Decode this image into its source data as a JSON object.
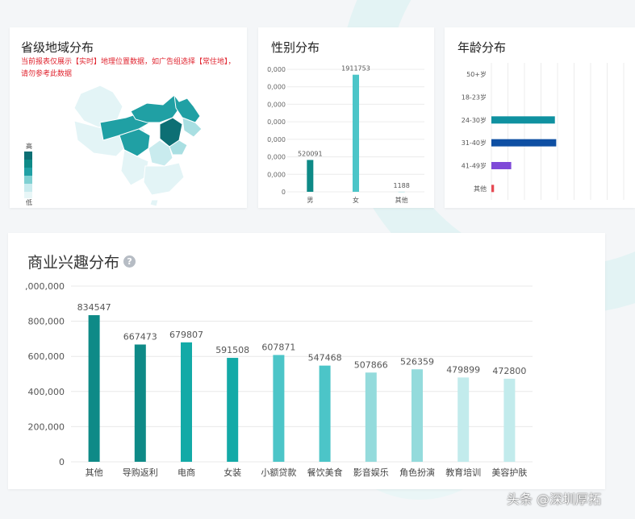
{
  "colors": {
    "teal_dark": "#0e8a87",
    "teal_mid": "#13aaa7",
    "teal_light": "#4cc5c8",
    "teal_pale": "#94dbdc",
    "teal_paler": "#c2ebec",
    "blue_dark": "#0e4fa3",
    "purple": "#7f49d8",
    "red": "#e64a53",
    "age_teal": "#0f91a0"
  },
  "map_card": {
    "title": "省级地域分布",
    "notice": "当前报表仅展示【实时】地理位置数据，如广告组选择【常住地】，请勿参考此数据",
    "legend_high": "高",
    "legend_low": "低"
  },
  "chart_data": [
    {
      "type": "bar",
      "title": "性别分布",
      "categories": [
        "男",
        "女",
        "其他"
      ],
      "values": [
        520091,
        1911753,
        1188
      ],
      "ylim": [
        0,
        2000000
      ],
      "yticks": [
        "0",
        "0,000",
        "0,000",
        "0,000",
        "0,000",
        "0,000",
        "0,000",
        "0,000"
      ],
      "grid": true,
      "colors": [
        "#0e8a87",
        "#4cc5c8",
        "#94dbdc"
      ]
    },
    {
      "type": "bar",
      "orientation": "horizontal",
      "title": "年龄分布",
      "categories": [
        "50+岁",
        "18-23岁",
        "24-30岁",
        "31-40岁",
        "41-49岁",
        "其他"
      ],
      "values": [
        0,
        0,
        0.48,
        0.49,
        0.15,
        0.02
      ],
      "grid": true,
      "colors": [
        "#0f91a0",
        "#0f91a0",
        "#0f91a0",
        "#0e4fa3",
        "#7f49d8",
        "#e64a53"
      ]
    },
    {
      "type": "bar",
      "title": "商业兴趣分布",
      "categories": [
        "其他",
        "导购返利",
        "电商",
        "女装",
        "小额贷款",
        "餐饮美食",
        "影音娱乐",
        "角色扮演",
        "教育培训",
        "美容护肤"
      ],
      "values": [
        834547,
        667473,
        679807,
        591508,
        607871,
        547468,
        507866,
        526359,
        479899,
        472800
      ],
      "ylim": [
        0,
        1000000
      ],
      "yticks": [
        "0",
        "200,000",
        "400,000",
        "600,000",
        "800,000",
        ",000,000"
      ],
      "grid": true,
      "colors": [
        "#0e8a87",
        "#0e8a87",
        "#13aaa7",
        "#13aaa7",
        "#4cc5c8",
        "#4cc5c8",
        "#94dbdc",
        "#94dbdc",
        "#c2ebec",
        "#c2ebec"
      ]
    }
  ],
  "watermark": "头条 @深圳厚拓"
}
